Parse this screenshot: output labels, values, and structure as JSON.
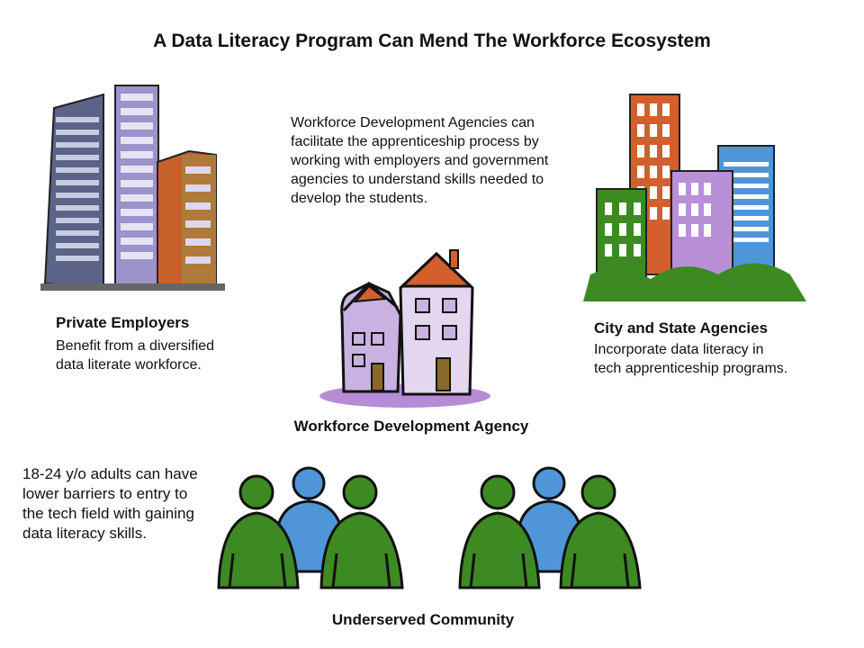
{
  "title": "A Data Literacy Program Can Mend The Workforce Ecosystem",
  "wda_description": "Workforce Development Agencies can facilitate the apprenticeship process by working with employers and government agencies to understand skills needed to develop the students.",
  "private_employers": {
    "heading": "Private Employers",
    "description": "Benefit from a diversified data literate workforce.",
    "icon": "office-buildings-icon"
  },
  "city_state": {
    "heading": "City and State Agencies",
    "description": "Incorporate data literacy in tech apprenticeship programs.",
    "icon": "city-buildings-icon"
  },
  "wda": {
    "heading": "Workforce Development Agency",
    "icon": "houses-icon"
  },
  "community": {
    "description": "18-24 y/o adults can have lower barriers to entry to the tech field with gaining data literacy skills.",
    "heading": "Underserved Community",
    "icon": "people-group-icon"
  },
  "colors": {
    "green": "#3d8a22",
    "blue": "#4f96d9",
    "orange": "#d35f2c",
    "purple": "#b98fd8",
    "slate": "#5b6488"
  }
}
